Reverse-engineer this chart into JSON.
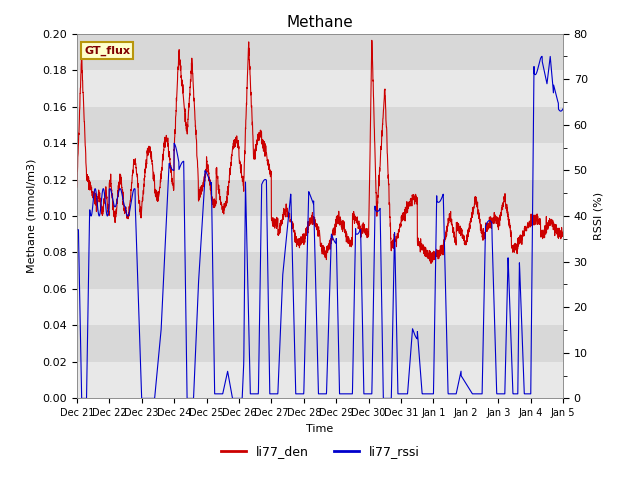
{
  "title": "Methane",
  "xlabel": "Time",
  "ylabel_left": "Methane (mmol/m3)",
  "ylabel_right": "RSSI (%)",
  "left_ylim": [
    0.0,
    0.2
  ],
  "right_ylim": [
    0,
    80
  ],
  "left_yticks": [
    0.0,
    0.02,
    0.04,
    0.06,
    0.08,
    0.1,
    0.12,
    0.14,
    0.16,
    0.18,
    0.2
  ],
  "right_yticks_labeled": [
    0,
    10,
    20,
    30,
    40,
    50,
    60,
    70,
    80
  ],
  "right_yticks_minor": [
    5,
    15,
    25,
    35,
    45,
    55,
    65,
    75
  ],
  "bg_color_dark": "#d8d8d8",
  "bg_color_light": "#ebebeb",
  "fig_color": "#ffffff",
  "annotation_text": "GT_flux",
  "annotation_bg": "#ffffcc",
  "annotation_border": "#b8960c",
  "line1_color": "#cc0000",
  "line2_color": "#0000cc",
  "legend_labels": [
    "li77_den",
    "li77_rssi"
  ],
  "x_tick_labels": [
    "Dec 21",
    "Dec 22",
    "Dec 23",
    "Dec 24",
    "Dec 25",
    "Dec 26",
    "Dec 27",
    "Dec 28",
    "Dec 29",
    "Dec 30",
    "Dec 31",
    "Jan 1",
    "Jan 2",
    "Jan 3",
    "Jan 4",
    "Jan 5"
  ],
  "n_days": 15
}
